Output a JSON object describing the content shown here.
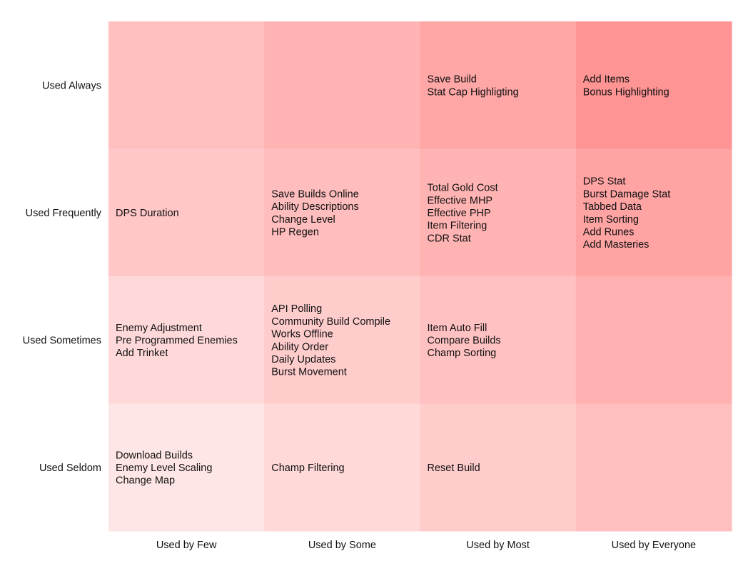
{
  "chart_data": {
    "type": "heatmap",
    "title": "",
    "xlabel": "",
    "ylabel": "",
    "columns": [
      "Used by Few",
      "Used by Some",
      "Used by Most",
      "Used by Everyone"
    ],
    "rows": [
      "Used Always",
      "Used Frequently",
      "Used Sometimes",
      "Used Seldom"
    ],
    "cells": [
      [
        {
          "items": [],
          "color": "#ffbfbf"
        },
        {
          "items": [],
          "color": "#ffb3b3"
        },
        {
          "items": [
            "Save Build",
            "Stat Cap Highligting"
          ],
          "color": "#ffa6a6"
        },
        {
          "items": [
            "Add Items",
            "Bonus Highlighting"
          ],
          "color": "#ff9494"
        }
      ],
      [
        {
          "items": [
            "DPS Duration"
          ],
          "color": "#ffc7c7"
        },
        {
          "items": [
            "Save Builds Online",
            "Ability Descriptions",
            "Change Level",
            "HP Regen"
          ],
          "color": "#ffbdbd"
        },
        {
          "items": [
            "Total Gold Cost",
            "Effective MHP",
            "Effective PHP",
            "Item Filtering",
            "CDR Stat"
          ],
          "color": "#ffb3b3"
        },
        {
          "items": [
            "DPS Stat",
            "Burst Damage Stat",
            "Tabbed Data",
            "Item Sorting",
            "Add Runes",
            "Add Masteries"
          ],
          "color": "#ffa3a3"
        }
      ],
      [
        {
          "items": [
            "Enemy Adjustment",
            "Pre Programmed Enemies",
            "Add Trinket"
          ],
          "color": "#ffd9d9"
        },
        {
          "items": [
            "API Polling",
            "Community Build Compile",
            "Works Offline",
            "Ability Order",
            "Daily Updates",
            "Burst Movement"
          ],
          "color": "#ffcccc"
        },
        {
          "items": [
            "Item Auto Fill",
            "Compare Builds",
            "Champ Sorting"
          ],
          "color": "#ffc1c1"
        },
        {
          "items": [],
          "color": "#ffb0b0"
        }
      ],
      [
        {
          "items": [
            "Download Builds",
            "Enemy Level Scaling",
            "Change Map"
          ],
          "color": "#ffe6e6"
        },
        {
          "items": [
            "Champ Filtering"
          ],
          "color": "#ffd8d8"
        },
        {
          "items": [
            "Reset Build"
          ],
          "color": "#ffcccc"
        },
        {
          "items": [],
          "color": "#ffbfbf"
        }
      ]
    ],
    "legend": "none",
    "grid": false
  }
}
